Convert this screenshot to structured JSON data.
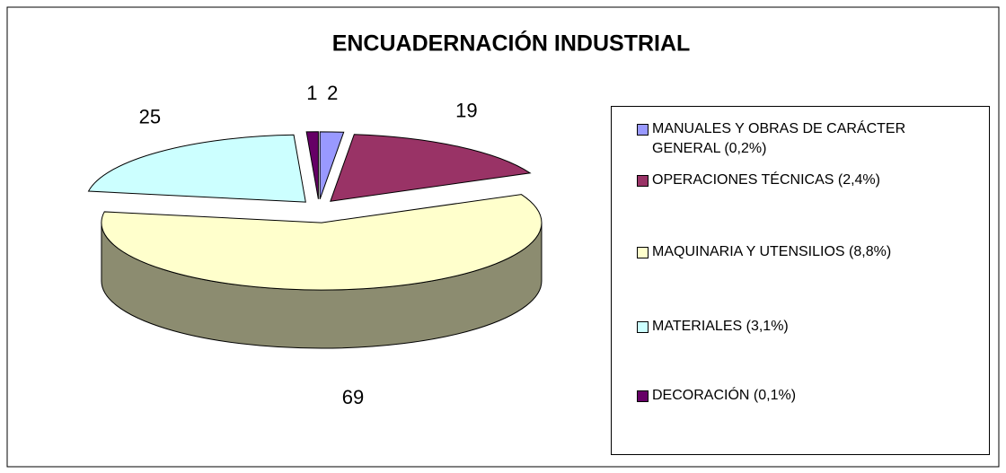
{
  "chart_data": {
    "type": "pie",
    "title": "ENCUADERNACIÓN INDUSTRIAL",
    "categories": [
      "MANUALES Y OBRAS DE CARÁCTER GENERAL (0,2%)",
      "OPERACIONES TÉCNICAS (2,4%)",
      "MAQUINARIA Y UTENSILIOS (8,8%)",
      "MATERIALES (3,1%)",
      "DECORACIÓN (0,1%)"
    ],
    "values": [
      2,
      19,
      69,
      25,
      1
    ],
    "colors": [
      "#9999ff",
      "#993366",
      "#ffffcc",
      "#ccffff",
      "#660066"
    ],
    "legend": "right"
  }
}
